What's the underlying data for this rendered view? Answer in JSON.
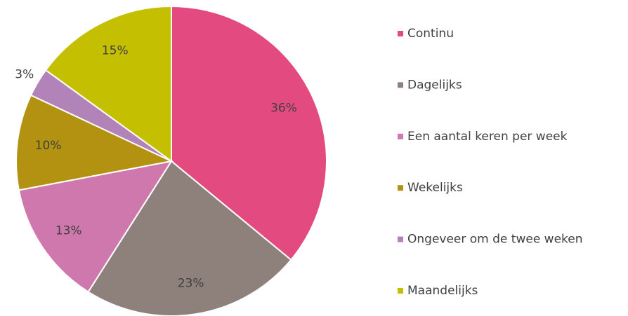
{
  "chart_data": {
    "type": "pie",
    "categories": [
      "Continu",
      "Dagelijks",
      "Een aantal keren per week",
      "Wekelijks",
      "Ongeveer om de twee weken",
      "Maandelijks"
    ],
    "values": [
      36,
      23,
      13,
      10,
      3,
      15
    ],
    "value_labels": [
      "36%",
      "23%",
      "13%",
      "10%",
      "3%",
      "15%"
    ],
    "colors": [
      "#e34a80",
      "#8e817c",
      "#cf78ad",
      "#b39212",
      "#b283b8",
      "#c4bf00"
    ],
    "legend": "right"
  }
}
